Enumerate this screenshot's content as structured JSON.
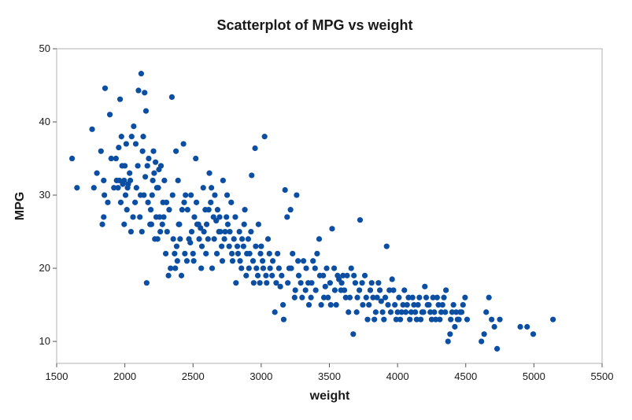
{
  "chart_data": {
    "type": "scatter",
    "title": "Scatterplot of MPG vs weight",
    "xlabel": "weight",
    "ylabel": "MPG",
    "xlim": [
      1500,
      5500
    ],
    "ylim": [
      7,
      50
    ],
    "xticks": [
      1500,
      2000,
      2500,
      3000,
      3500,
      4000,
      4500,
      5000,
      5500
    ],
    "yticks": [
      10,
      20,
      30,
      40,
      50
    ],
    "grid": false,
    "marker_color": "#0b4ea2",
    "points": [
      [
        1613,
        35
      ],
      [
        1649,
        31
      ],
      [
        1760,
        39
      ],
      [
        1773,
        31
      ],
      [
        1795,
        33
      ],
      [
        1825,
        36
      ],
      [
        1845,
        32
      ],
      [
        1850,
        30
      ],
      [
        1835,
        26
      ],
      [
        1845,
        27
      ],
      [
        1855,
        44.6
      ],
      [
        1875,
        29
      ],
      [
        1890,
        41
      ],
      [
        1900,
        35
      ],
      [
        1940,
        32
      ],
      [
        1950,
        31
      ],
      [
        1955,
        36.5
      ],
      [
        1965,
        43.1
      ],
      [
        1970,
        29
      ],
      [
        1975,
        38
      ],
      [
        1985,
        31.5
      ],
      [
        1995,
        32
      ],
      [
        1995,
        26
      ],
      [
        2000,
        34
      ],
      [
        2005,
        30
      ],
      [
        2010,
        37
      ],
      [
        2020,
        31
      ],
      [
        2025,
        31.5
      ],
      [
        2035,
        33
      ],
      [
        2045,
        25
      ],
      [
        2050,
        38
      ],
      [
        2065,
        39.4
      ],
      [
        2075,
        29
      ],
      [
        2085,
        31
      ],
      [
        2100,
        44.3
      ],
      [
        2110,
        27
      ],
      [
        2120,
        46.6
      ],
      [
        2125,
        25
      ],
      [
        2130,
        36
      ],
      [
        2140,
        30
      ],
      [
        2145,
        44
      ],
      [
        2150,
        32.5
      ],
      [
        2155,
        41.5
      ],
      [
        2160,
        18
      ],
      [
        2165,
        34
      ],
      [
        2175,
        35
      ],
      [
        2185,
        26
      ],
      [
        2190,
        28
      ],
      [
        2200,
        30
      ],
      [
        2210,
        36
      ],
      [
        2215,
        33
      ],
      [
        2220,
        24
      ],
      [
        2230,
        27
      ],
      [
        2235,
        31
      ],
      [
        2240,
        24
      ],
      [
        2250,
        33.5
      ],
      [
        2255,
        27
      ],
      [
        2265,
        34
      ],
      [
        2275,
        26
      ],
      [
        2280,
        29
      ],
      [
        2290,
        32
      ],
      [
        2300,
        22
      ],
      [
        2310,
        25
      ],
      [
        2320,
        19
      ],
      [
        2325,
        28
      ],
      [
        2335,
        20
      ],
      [
        2345,
        43.4
      ],
      [
        2350,
        30
      ],
      [
        2365,
        22
      ],
      [
        2375,
        36
      ],
      [
        2380,
        23
      ],
      [
        2385,
        21
      ],
      [
        2395,
        26
      ],
      [
        2405,
        24
      ],
      [
        2420,
        28
      ],
      [
        2430,
        37
      ],
      [
        2435,
        29
      ],
      [
        2445,
        30
      ],
      [
        2455,
        21
      ],
      [
        2470,
        24
      ],
      [
        2480,
        23.5
      ],
      [
        2490,
        25
      ],
      [
        2500,
        22
      ],
      [
        2510,
        27
      ],
      [
        2520,
        35
      ],
      [
        2530,
        26
      ],
      [
        2545,
        24
      ],
      [
        2555,
        25.5
      ],
      [
        2565,
        23
      ],
      [
        2575,
        31
      ],
      [
        2590,
        28
      ],
      [
        2600,
        26
      ],
      [
        2610,
        24
      ],
      [
        2620,
        33
      ],
      [
        2630,
        29
      ],
      [
        2640,
        20
      ],
      [
        2650,
        27
      ],
      [
        2660,
        30
      ],
      [
        2670,
        26.5
      ],
      [
        2680,
        28
      ],
      [
        2690,
        25
      ],
      [
        2700,
        25
      ],
      [
        2710,
        23
      ],
      [
        2720,
        32
      ],
      [
        2730,
        24
      ],
      [
        2745,
        27
      ],
      [
        2755,
        26
      ],
      [
        2765,
        23
      ],
      [
        2780,
        29
      ],
      [
        2790,
        21
      ],
      [
        2800,
        24
      ],
      [
        2815,
        18
      ],
      [
        2830,
        22
      ],
      [
        2840,
        25
      ],
      [
        2855,
        20
      ],
      [
        2870,
        23
      ],
      [
        2880,
        28
      ],
      [
        2890,
        19
      ],
      [
        2905,
        24
      ],
      [
        2915,
        22
      ],
      [
        2930,
        32.7
      ],
      [
        2945,
        18
      ],
      [
        2955,
        36.4
      ],
      [
        2965,
        20
      ],
      [
        2980,
        26
      ],
      [
        2990,
        18
      ],
      [
        3000,
        23
      ],
      [
        3010,
        21
      ],
      [
        3025,
        38
      ],
      [
        3035,
        19
      ],
      [
        3050,
        24
      ],
      [
        3065,
        20
      ],
      [
        3080,
        19
      ],
      [
        3100,
        14
      ],
      [
        3120,
        22
      ],
      [
        3140,
        17.5
      ],
      [
        3150,
        19
      ],
      [
        3160,
        15
      ],
      [
        3175,
        30.7
      ],
      [
        3190,
        27
      ],
      [
        3205,
        20
      ],
      [
        3215,
        28
      ],
      [
        3230,
        22
      ],
      [
        3245,
        16
      ],
      [
        3260,
        30
      ],
      [
        3275,
        19
      ],
      [
        3290,
        18
      ],
      [
        3310,
        21
      ],
      [
        3325,
        17
      ],
      [
        3345,
        18
      ],
      [
        3365,
        16
      ],
      [
        3380,
        21
      ],
      [
        3395,
        20
      ],
      [
        3410,
        22
      ],
      [
        3425,
        24
      ],
      [
        3440,
        15
      ],
      [
        3455,
        19
      ],
      [
        3470,
        17.5
      ],
      [
        3490,
        16
      ],
      [
        3505,
        18
      ],
      [
        3520,
        25.4
      ],
      [
        3535,
        20
      ],
      [
        3550,
        15
      ],
      [
        3570,
        18.5
      ],
      [
        3585,
        17
      ],
      [
        3600,
        19
      ],
      [
        3620,
        16
      ],
      [
        3640,
        14
      ],
      [
        3660,
        20
      ],
      [
        3675,
        11
      ],
      [
        3690,
        18
      ],
      [
        3705,
        16
      ],
      [
        3725,
        26.6
      ],
      [
        3745,
        15
      ],
      [
        3760,
        19
      ],
      [
        3780,
        13
      ],
      [
        3800,
        17
      ],
      [
        3820,
        16
      ],
      [
        3840,
        14
      ],
      [
        3860,
        18
      ],
      [
        3880,
        15.5
      ],
      [
        3900,
        13
      ],
      [
        3920,
        23
      ],
      [
        3940,
        17
      ],
      [
        3960,
        18.5
      ],
      [
        3980,
        15
      ],
      [
        4000,
        14
      ],
      [
        4020,
        13
      ],
      [
        4040,
        15
      ],
      [
        4060,
        14
      ],
      [
        4080,
        16
      ],
      [
        4100,
        14
      ],
      [
        4120,
        15
      ],
      [
        4140,
        13
      ],
      [
        4160,
        16
      ],
      [
        4180,
        14
      ],
      [
        4200,
        17.5
      ],
      [
        4220,
        15
      ],
      [
        4240,
        14
      ],
      [
        4260,
        16
      ],
      [
        4280,
        13
      ],
      [
        4300,
        15
      ],
      [
        4320,
        14
      ],
      [
        4340,
        16
      ],
      [
        4355,
        17
      ],
      [
        4370,
        10
      ],
      [
        4385,
        11
      ],
      [
        4400,
        14
      ],
      [
        4420,
        12
      ],
      [
        4440,
        13
      ],
      [
        4460,
        14
      ],
      [
        4480,
        15
      ],
      [
        4495,
        16
      ],
      [
        4510,
        13
      ],
      [
        4615,
        10
      ],
      [
        4635,
        11
      ],
      [
        4650,
        14
      ],
      [
        4670,
        16
      ],
      [
        4690,
        13
      ],
      [
        4710,
        12
      ],
      [
        4730,
        9
      ],
      [
        4750,
        13
      ],
      [
        4900,
        12
      ],
      [
        4950,
        12
      ],
      [
        4995,
        11
      ],
      [
        5140,
        13
      ],
      [
        1920,
        31
      ],
      [
        1935,
        35
      ],
      [
        1960,
        32
      ],
      [
        1980,
        34
      ],
      [
        2015,
        28
      ],
      [
        2040,
        32
      ],
      [
        2060,
        27
      ],
      [
        2080,
        37
      ],
      [
        2095,
        34
      ],
      [
        2115,
        30
      ],
      [
        2135,
        38
      ],
      [
        2170,
        29
      ],
      [
        2195,
        26
      ],
      [
        2205,
        32
      ],
      [
        2225,
        34.5
      ],
      [
        2245,
        31
      ],
      [
        2260,
        25
      ],
      [
        2285,
        27
      ],
      [
        2305,
        29
      ],
      [
        2355,
        24
      ],
      [
        2370,
        20
      ],
      [
        2390,
        32
      ],
      [
        2400,
        26
      ],
      [
        2415,
        19
      ],
      [
        2440,
        22
      ],
      [
        2460,
        28
      ],
      [
        2485,
        30
      ],
      [
        2505,
        21
      ],
      [
        2525,
        29
      ],
      [
        2540,
        26
      ],
      [
        2560,
        20
      ],
      [
        2580,
        25
      ],
      [
        2595,
        22
      ],
      [
        2615,
        28
      ],
      [
        2635,
        31
      ],
      [
        2655,
        24
      ],
      [
        2675,
        22
      ],
      [
        2695,
        27
      ],
      [
        2715,
        21
      ],
      [
        2735,
        25
      ],
      [
        2750,
        30
      ],
      [
        2770,
        25
      ],
      [
        2785,
        22
      ],
      [
        2810,
        27
      ],
      [
        2825,
        23
      ],
      [
        2845,
        21
      ],
      [
        2860,
        24
      ],
      [
        2875,
        26
      ],
      [
        2895,
        22
      ],
      [
        2910,
        20
      ],
      [
        2925,
        25
      ],
      [
        2940,
        21
      ],
      [
        2960,
        23
      ],
      [
        2975,
        19
      ],
      [
        2995,
        22
      ],
      [
        3015,
        20
      ],
      [
        3040,
        18
      ],
      [
        3060,
        22
      ],
      [
        3085,
        21
      ],
      [
        3110,
        18
      ],
      [
        3130,
        20
      ],
      [
        3165,
        13
      ],
      [
        3195,
        18
      ],
      [
        3220,
        20
      ],
      [
        3250,
        17
      ],
      [
        3270,
        21
      ],
      [
        3300,
        16
      ],
      [
        3330,
        20
      ],
      [
        3350,
        15
      ],
      [
        3370,
        18
      ],
      [
        3400,
        17
      ],
      [
        3430,
        19
      ],
      [
        3460,
        16
      ],
      [
        3480,
        20
      ],
      [
        3510,
        15
      ],
      [
        3540,
        17
      ],
      [
        3560,
        19
      ],
      [
        3590,
        18
      ],
      [
        3610,
        17
      ],
      [
        3630,
        19
      ],
      [
        3650,
        16
      ],
      [
        3680,
        19
      ],
      [
        3700,
        14
      ],
      [
        3720,
        17
      ],
      [
        3740,
        18
      ],
      [
        3770,
        16
      ],
      [
        3790,
        15
      ],
      [
        3810,
        18
      ],
      [
        3830,
        13
      ],
      [
        3850,
        16
      ],
      [
        3870,
        17
      ],
      [
        3890,
        14
      ],
      [
        3910,
        16
      ],
      [
        3930,
        15
      ],
      [
        3950,
        14
      ],
      [
        3970,
        17
      ],
      [
        3990,
        13
      ],
      [
        4010,
        16
      ],
      [
        4030,
        14
      ],
      [
        4050,
        17
      ],
      [
        4070,
        15
      ],
      [
        4090,
        13
      ],
      [
        4110,
        16
      ],
      [
        4130,
        14
      ],
      [
        4150,
        15
      ],
      [
        4170,
        13
      ],
      [
        4190,
        14
      ],
      [
        4210,
        16
      ],
      [
        4230,
        15
      ],
      [
        4250,
        13
      ],
      [
        4270,
        14
      ],
      [
        4290,
        16
      ],
      [
        4310,
        13
      ],
      [
        4330,
        15
      ],
      [
        4350,
        14
      ],
      [
        4390,
        13
      ],
      [
        4410,
        15
      ],
      [
        4430,
        14
      ],
      [
        4450,
        13
      ],
      [
        4470,
        14
      ]
    ]
  }
}
